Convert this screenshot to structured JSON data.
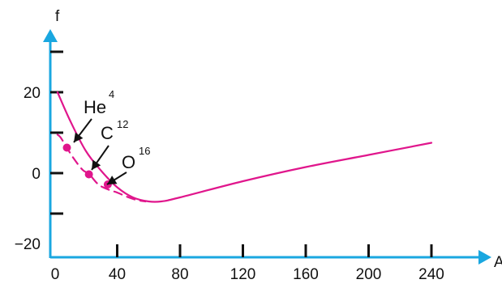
{
  "chart_data": {
    "type": "line",
    "xlabel": "A",
    "ylabel": "f",
    "xlim": [
      0,
      240
    ],
    "ylim": [
      -20,
      20
    ],
    "x_ticks": [
      0,
      40,
      80,
      120,
      160,
      200,
      240
    ],
    "x_tick_labels": [
      "0",
      "40",
      "80",
      "120",
      "160",
      "200",
      "240"
    ],
    "y_ticks": [
      -20,
      0,
      20
    ],
    "y_tick_labels": [
      "−20",
      "0",
      "20"
    ],
    "y_minor_ticks": [
      -10,
      10,
      30
    ],
    "grid": false,
    "series": [
      {
        "style": "solid",
        "x": [
          2,
          10,
          20,
          30,
          40,
          50,
          60,
          68,
          80,
          120,
          160,
          200,
          240
        ],
        "y": [
          20,
          13,
          5.5,
          0.5,
          -3.5,
          -6,
          -7,
          -7,
          -6,
          -2,
          1.5,
          4.5,
          7.5
        ]
      },
      {
        "style": "dashed",
        "x": [
          2,
          4,
          8,
          12,
          18,
          22,
          28,
          34,
          40,
          46,
          52,
          58
        ],
        "y": [
          9.5,
          8.8,
          6.3,
          3.8,
          0.8,
          -0.2,
          -2.8,
          -4,
          -4.8,
          -5.8,
          -6.6,
          -7
        ]
      }
    ],
    "points": [
      {
        "label": "He",
        "mass": "4",
        "x": 8,
        "y": 6.3
      },
      {
        "label": "C",
        "mass": "12",
        "x": 22,
        "y": -0.3
      },
      {
        "label": "O",
        "mass": "16",
        "x": 34,
        "y": -2.8
      }
    ],
    "colors": {
      "curve": "#e0168c",
      "axis": "#1aa7e0",
      "ticks": "#111111"
    }
  }
}
